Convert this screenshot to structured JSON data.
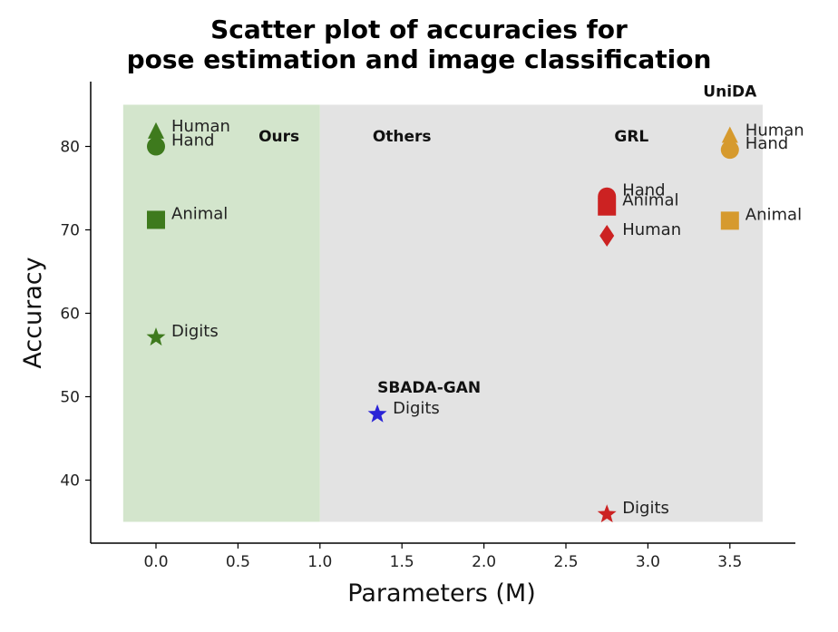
{
  "chart_data": {
    "type": "scatter",
    "title_line1": "Scatter plot of accuracies for",
    "title_line2": "pose estimation and image classification",
    "xlabel": "Parameters (M)",
    "ylabel": "Accuracy",
    "xlim": [
      -0.4,
      4.0
    ],
    "ylim": [
      33,
      87
    ],
    "xticks": [
      0.0,
      0.5,
      1.0,
      1.5,
      2.0,
      2.5,
      3.0,
      3.5
    ],
    "xtick_labels": [
      "0.0",
      "0.5",
      "1.0",
      "1.5",
      "2.0",
      "2.5",
      "3.0",
      "3.5"
    ],
    "yticks": [
      40,
      50,
      60,
      70,
      80
    ],
    "ytick_labels": [
      "40",
      "50",
      "60",
      "70",
      "80"
    ],
    "grid": false,
    "regions": [
      {
        "x0": -0.2,
        "x1": 1.0,
        "y0": 35,
        "y1": 85,
        "color": "#d3e5cc"
      },
      {
        "x0": 1.0,
        "x1": 3.7,
        "y0": 35,
        "y1": 85,
        "color": "#e3e3e3"
      }
    ],
    "region_labels": [
      {
        "text": "Ours",
        "x": 0.75,
        "y": 80.6
      },
      {
        "text": "Others",
        "x": 1.5,
        "y": 80.6
      },
      {
        "text": "GRL",
        "x": 2.9,
        "y": 80.6
      },
      {
        "text": "UniDA",
        "x": 3.5,
        "y": 86.0
      },
      {
        "text": "SBADA-GAN",
        "x": 1.35,
        "y": 50.5
      }
    ],
    "series": [
      {
        "name": "Ours",
        "color": "#3e7a1d",
        "points": [
          {
            "label": "Human",
            "x": 0.0,
            "y": 81.7,
            "marker": "triangle"
          },
          {
            "label": "Hand",
            "x": 0.0,
            "y": 80.0,
            "marker": "circle"
          },
          {
            "label": "Animal",
            "x": 0.0,
            "y": 71.2,
            "marker": "square"
          },
          {
            "label": "Digits",
            "x": 0.0,
            "y": 57.1,
            "marker": "star"
          }
        ]
      },
      {
        "name": "SBADA-GAN",
        "color": "#2a23d6",
        "points": [
          {
            "label": "Digits",
            "x": 1.35,
            "y": 47.9,
            "marker": "star"
          }
        ]
      },
      {
        "name": "GRL",
        "color": "#cc2222",
        "points": [
          {
            "label": "Hand",
            "x": 2.75,
            "y": 74.0,
            "marker": "circle"
          },
          {
            "label": "Animal",
            "x": 2.75,
            "y": 72.8,
            "marker": "square"
          },
          {
            "label": "Human",
            "x": 2.75,
            "y": 69.3,
            "marker": "diamond"
          },
          {
            "label": "Digits",
            "x": 2.75,
            "y": 35.9,
            "marker": "star"
          }
        ]
      },
      {
        "name": "UniDA",
        "color": "#d69a2e",
        "points": [
          {
            "label": "Human",
            "x": 3.5,
            "y": 81.2,
            "marker": "triangle"
          },
          {
            "label": "Hand",
            "x": 3.5,
            "y": 79.6,
            "marker": "circle"
          },
          {
            "label": "Animal",
            "x": 3.5,
            "y": 71.1,
            "marker": "square"
          }
        ]
      }
    ]
  }
}
